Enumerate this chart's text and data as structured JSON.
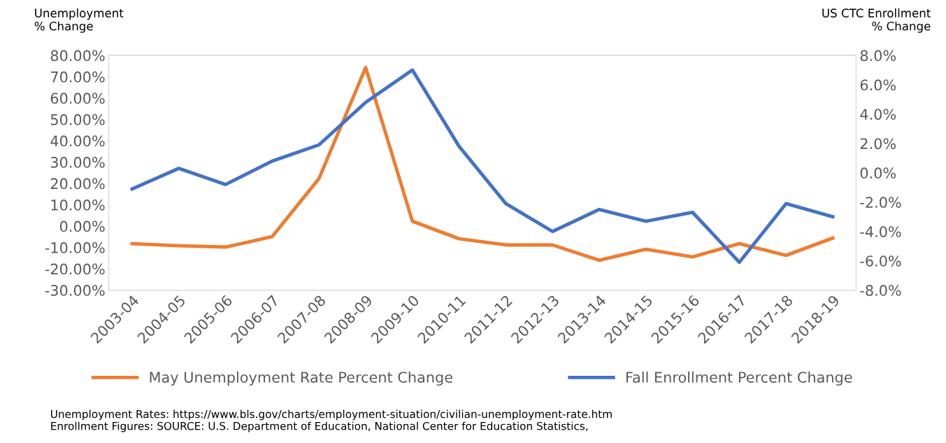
{
  "chart_data": {
    "type": "line",
    "ylabel": "Unemployment\n% Change",
    "y2label": "US CTC Enrollment\n% Change",
    "categories": [
      "2003-04",
      "2004-05",
      "2005-06",
      "2006-07",
      "2007-08",
      "2008-09",
      "2009-10",
      "2010-11",
      "2011-12",
      "2012-13",
      "2013-14",
      "2014-15",
      "2015-16",
      "2016-17",
      "2017-18",
      "2018-19"
    ],
    "series": [
      {
        "name": "May Unemployment Rate Percent Change",
        "color": "#ed7d31",
        "values": [
          -8.2,
          -9.2,
          -9.8,
          -4.9,
          22.3,
          74.3,
          2.3,
          -5.9,
          -8.8,
          -8.8,
          -16.0,
          -10.8,
          -14.4,
          -8.2,
          -13.7,
          -5.6
        ]
      },
      {
        "name": "Fall Enrollment Percent Change",
        "color": "#4472c4",
        "axis": "y2",
        "values": [
          -1.1,
          0.3,
          -0.8,
          0.8,
          1.9,
          4.8,
          7.0,
          1.8,
          -2.1,
          -4.0,
          -2.5,
          -3.3,
          -2.7,
          -6.1,
          -2.1,
          -3.0
        ]
      }
    ],
    "ylim": [
      -30,
      80
    ],
    "yticks": [
      {
        "value": -30,
        "label": "-30.00%"
      },
      {
        "value": -20,
        "label": "-20.00%"
      },
      {
        "value": -10,
        "label": "-10.00%"
      },
      {
        "value": 0,
        "label": "0.00%"
      },
      {
        "value": 10,
        "label": "10.00%"
      },
      {
        "value": 20,
        "label": "20.00%"
      },
      {
        "value": 30,
        "label": "30.00%"
      },
      {
        "value": 40,
        "label": "40.00%"
      },
      {
        "value": 50,
        "label": "50.00%"
      },
      {
        "value": 60,
        "label": "60.00%"
      },
      {
        "value": 70,
        "label": "70.00%"
      },
      {
        "value": 80,
        "label": "80.00%"
      }
    ],
    "y2lim": [
      -8,
      8
    ],
    "y2ticks": [
      {
        "value": -8,
        "label": "-8.0%"
      },
      {
        "value": -6,
        "label": "-6.0%"
      },
      {
        "value": -4,
        "label": "-4.0%"
      },
      {
        "value": -2,
        "label": "-2.0%"
      },
      {
        "value": 0,
        "label": "0.0%"
      },
      {
        "value": 2,
        "label": "2.0%"
      },
      {
        "value": 4,
        "label": "4.0%"
      },
      {
        "value": 6,
        "label": "6.0%"
      },
      {
        "value": 8,
        "label": "8.0%"
      }
    ],
    "legend": "bottom",
    "grid": false,
    "marker": "none",
    "line_style": "solid",
    "annotations": [
      "Unemployment Rates: https://www.bls.gov/charts/employment-situation/civilian-unemployment-rate.htm\nEnrollment Figures: SOURCE: U.S. Department of Education, National Center for Education Statistics,"
    ]
  }
}
